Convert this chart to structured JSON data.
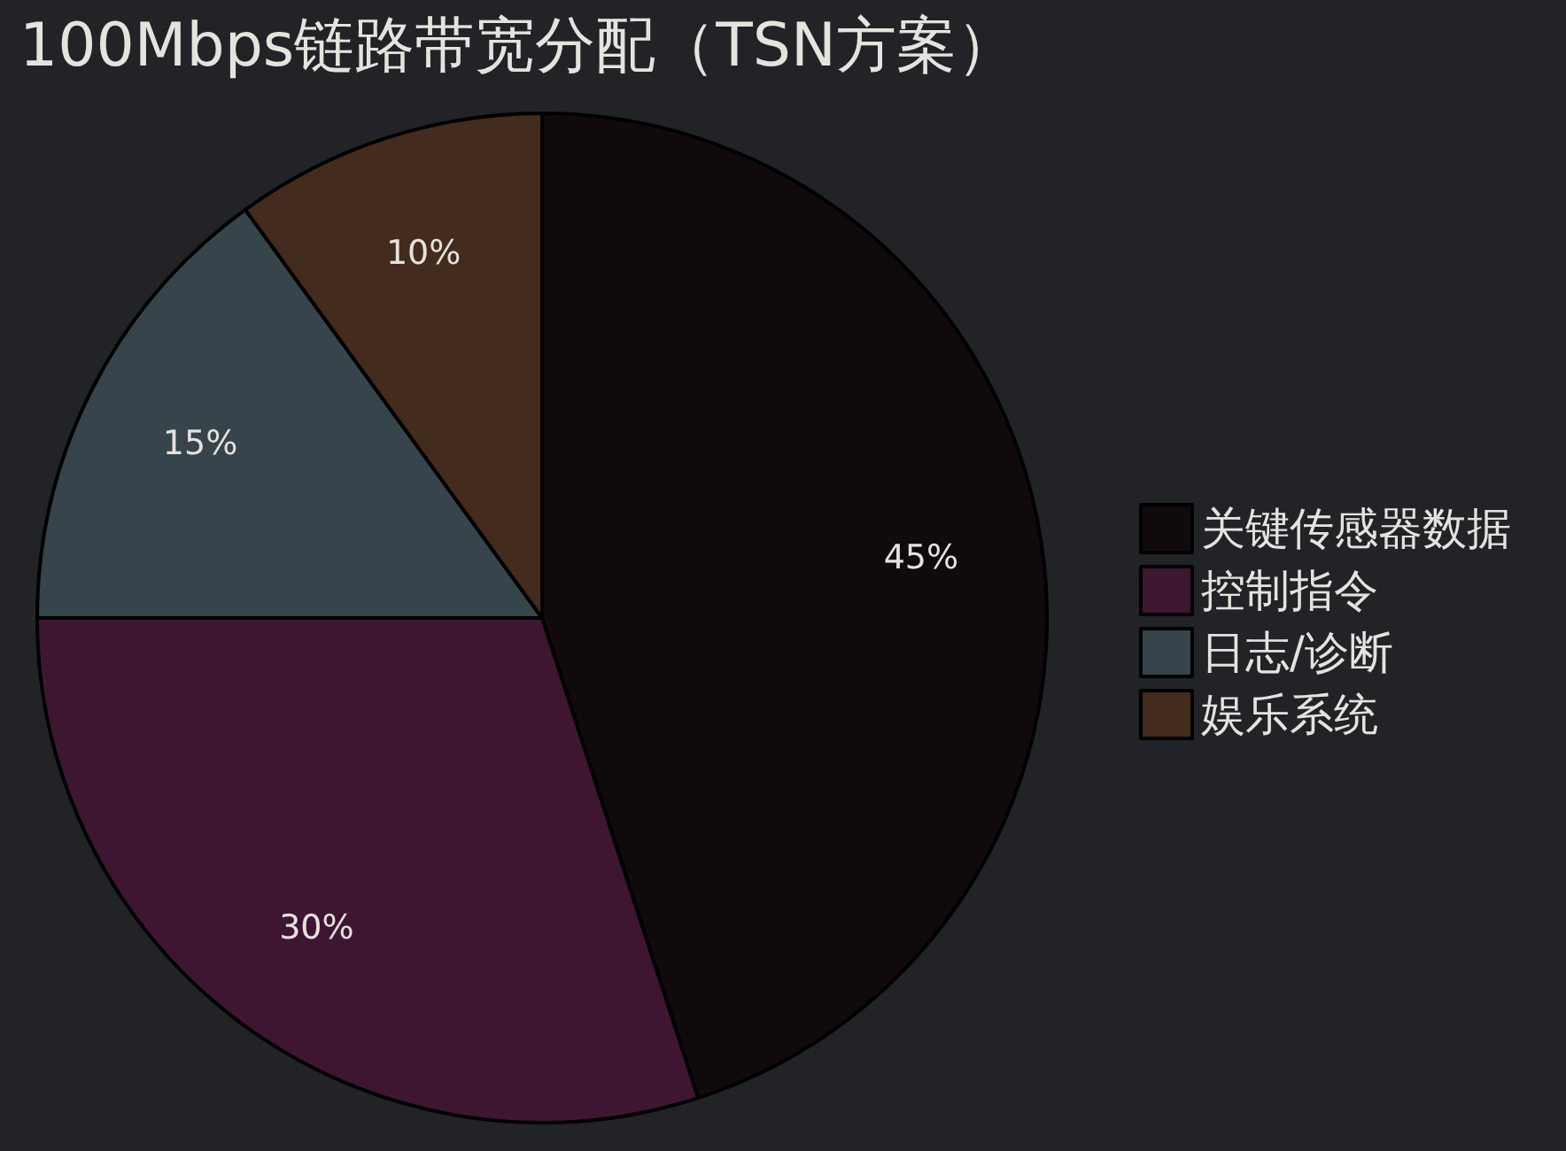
{
  "chart_data": {
    "type": "pie",
    "title": "100Mbps链路带宽分配（TSN方案）",
    "categories": [
      "关键传感器数据",
      "控制指令",
      "日志/诊断",
      "娱乐系统"
    ],
    "values": [
      45,
      30,
      15,
      10
    ],
    "colors": [
      "#110a0d",
      "#3f1632",
      "#37444b",
      "#432b1e"
    ],
    "value_labels": [
      "45%",
      "30%",
      "15%",
      "10%"
    ],
    "legend": "right"
  }
}
